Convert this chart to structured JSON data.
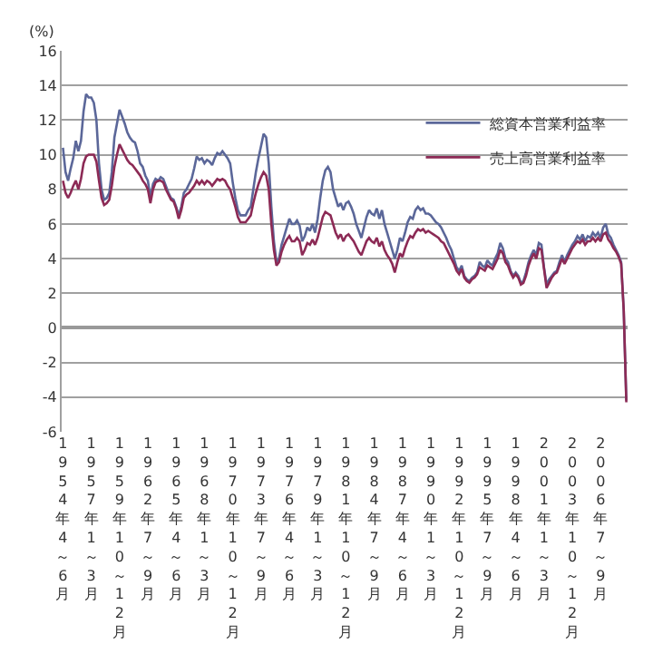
{
  "chart_data": {
    "type": "line",
    "ylabel": "(%)",
    "categories": [
      "1954年4～6月",
      null,
      null,
      null,
      null,
      null,
      null,
      null,
      null,
      null,
      null,
      "1957年1～3月",
      null,
      null,
      null,
      null,
      null,
      null,
      null,
      null,
      null,
      null,
      "1959年10～12月",
      null,
      null,
      null,
      null,
      null,
      null,
      null,
      null,
      null,
      null,
      "1962年7～9月",
      null,
      null,
      null,
      null,
      null,
      null,
      null,
      null,
      null,
      null,
      "1965年4～6月",
      null,
      null,
      null,
      null,
      null,
      null,
      null,
      null,
      null,
      null,
      "1968年1～3月",
      null,
      null,
      null,
      null,
      null,
      null,
      null,
      null,
      null,
      null,
      "1970年10～12月",
      null,
      null,
      null,
      null,
      null,
      null,
      null,
      null,
      null,
      null,
      "1973年7～9月",
      null,
      null,
      null,
      null,
      null,
      null,
      null,
      null,
      null,
      null,
      "1976年4～6月",
      null,
      null,
      null,
      null,
      null,
      null,
      null,
      null,
      null,
      null,
      "1979年1～3月",
      null,
      null,
      null,
      null,
      null,
      null,
      null,
      null,
      null,
      null,
      "1981年10～12月",
      null,
      null,
      null,
      null,
      null,
      null,
      null,
      null,
      null,
      null,
      "1984年7～9月",
      null,
      null,
      null,
      null,
      null,
      null,
      null,
      null,
      null,
      null,
      "1987年4～6月",
      null,
      null,
      null,
      null,
      null,
      null,
      null,
      null,
      null,
      null,
      "1990年1～3月",
      null,
      null,
      null,
      null,
      null,
      null,
      null,
      null,
      null,
      null,
      "1992年10～12月",
      null,
      null,
      null,
      null,
      null,
      null,
      null,
      null,
      null,
      null,
      "1995年7～9月",
      null,
      null,
      null,
      null,
      null,
      null,
      null,
      null,
      null,
      null,
      "1998年4～6月",
      null,
      null,
      null,
      null,
      null,
      null,
      null,
      null,
      null,
      null,
      "2001年1～3月",
      null,
      null,
      null,
      null,
      null,
      null,
      null,
      null,
      null,
      null,
      "2003年10～12月",
      null,
      null,
      null,
      null,
      null,
      null,
      null,
      null,
      null,
      null,
      "2006年7～9月",
      null,
      null,
      null,
      null,
      null,
      null,
      null,
      null,
      null,
      null
    ],
    "series": [
      {
        "name": "総資本営業利益率",
        "color": "#5b6799",
        "values": [
          10.4,
          9.0,
          8.5,
          9.2,
          9.8,
          10.8,
          10.2,
          10.8,
          12.5,
          13.5,
          13.3,
          13.3,
          13.0,
          12.0,
          9.5,
          8.0,
          7.4,
          7.5,
          7.8,
          9.0,
          11.0,
          11.8,
          12.6,
          12.2,
          11.8,
          11.3,
          11.0,
          10.8,
          10.7,
          10.2,
          9.5,
          9.3,
          8.8,
          8.5,
          7.5,
          8.3,
          8.6,
          8.5,
          8.7,
          8.6,
          8.2,
          7.8,
          7.5,
          7.4,
          7.0,
          6.5,
          7.0,
          7.8,
          8.0,
          8.3,
          8.6,
          9.2,
          9.9,
          9.7,
          9.8,
          9.5,
          9.7,
          9.6,
          9.4,
          9.8,
          10.1,
          10.0,
          10.2,
          10.0,
          9.8,
          9.5,
          8.4,
          7.5,
          6.8,
          6.5,
          6.5,
          6.5,
          6.8,
          7.0,
          8.0,
          9.0,
          9.8,
          10.5,
          11.2,
          11.0,
          9.5,
          7.0,
          5.0,
          3.8,
          4.0,
          4.8,
          5.3,
          5.8,
          6.3,
          6.0,
          6.0,
          6.2,
          5.9,
          5.0,
          5.3,
          5.8,
          5.6,
          6.0,
          5.5,
          6.3,
          7.5,
          8.5,
          9.1,
          9.3,
          9.0,
          8.0,
          7.5,
          7.0,
          7.2,
          6.8,
          7.2,
          7.3,
          7.0,
          6.6,
          6.0,
          5.6,
          5.2,
          5.8,
          6.4,
          6.8,
          6.6,
          6.5,
          6.9,
          6.3,
          6.8,
          6.0,
          5.5,
          5.0,
          4.5,
          4.0,
          4.5,
          5.2,
          5.0,
          5.5,
          6.1,
          6.4,
          6.3,
          6.8,
          7.0,
          6.8,
          6.9,
          6.6,
          6.6,
          6.5,
          6.3,
          6.1,
          6.0,
          5.8,
          5.5,
          5.2,
          4.8,
          4.5,
          4.0,
          3.5,
          3.3,
          3.6,
          3.0,
          2.8,
          2.7,
          2.9,
          3.0,
          3.2,
          3.8,
          3.6,
          3.5,
          3.9,
          3.7,
          3.6,
          4.0,
          4.3,
          4.9,
          4.6,
          4.0,
          3.8,
          3.3,
          3.0,
          3.2,
          3.0,
          2.6,
          2.7,
          3.2,
          3.8,
          4.2,
          4.5,
          4.2,
          4.9,
          4.8,
          3.5,
          2.5,
          2.8,
          3.0,
          3.2,
          3.3,
          3.8,
          4.2,
          3.8,
          4.2,
          4.5,
          4.8,
          5.0,
          5.3,
          5.1,
          5.4,
          5.0,
          5.3,
          5.2,
          5.5,
          5.3,
          5.5,
          5.2,
          5.8,
          6.0,
          5.4,
          5.2,
          4.8,
          4.5,
          4.2,
          3.8,
          1.0,
          -4.2
        ]
      },
      {
        "name": "売上高営業利益率",
        "color": "#8c2a55",
        "values": [
          8.5,
          7.8,
          7.5,
          7.8,
          8.2,
          8.5,
          8.0,
          8.6,
          9.5,
          9.9,
          10.0,
          10.0,
          10.0,
          9.6,
          8.5,
          7.5,
          7.1,
          7.2,
          7.4,
          8.2,
          9.3,
          10.0,
          10.6,
          10.3,
          10.0,
          9.7,
          9.5,
          9.4,
          9.2,
          9.0,
          8.8,
          8.5,
          8.3,
          8.0,
          7.2,
          8.0,
          8.4,
          8.5,
          8.5,
          8.4,
          8.0,
          7.7,
          7.4,
          7.3,
          6.9,
          6.3,
          6.8,
          7.5,
          7.7,
          7.8,
          8.0,
          8.2,
          8.5,
          8.3,
          8.5,
          8.3,
          8.5,
          8.4,
          8.2,
          8.4,
          8.6,
          8.5,
          8.6,
          8.5,
          8.2,
          8.0,
          7.5,
          7.0,
          6.4,
          6.1,
          6.1,
          6.1,
          6.3,
          6.5,
          7.2,
          7.8,
          8.3,
          8.7,
          9.0,
          8.8,
          8.0,
          6.0,
          4.5,
          3.6,
          3.8,
          4.4,
          4.8,
          5.1,
          5.3,
          5.0,
          5.0,
          5.2,
          5.0,
          4.2,
          4.5,
          4.9,
          4.8,
          5.1,
          4.8,
          5.2,
          5.8,
          6.4,
          6.7,
          6.6,
          6.5,
          6.0,
          5.5,
          5.2,
          5.4,
          5.0,
          5.3,
          5.4,
          5.2,
          5.0,
          4.7,
          4.4,
          4.2,
          4.6,
          5.0,
          5.2,
          5.0,
          4.9,
          5.2,
          4.7,
          5.0,
          4.5,
          4.2,
          4.0,
          3.7,
          3.2,
          3.8,
          4.3,
          4.1,
          4.6,
          5.0,
          5.3,
          5.2,
          5.5,
          5.7,
          5.6,
          5.7,
          5.5,
          5.6,
          5.5,
          5.4,
          5.3,
          5.2,
          5.0,
          4.9,
          4.6,
          4.3,
          4.0,
          3.7,
          3.3,
          3.1,
          3.4,
          2.9,
          2.7,
          2.6,
          2.8,
          2.9,
          3.1,
          3.5,
          3.4,
          3.3,
          3.6,
          3.5,
          3.4,
          3.7,
          4.0,
          4.5,
          4.3,
          3.8,
          3.6,
          3.2,
          2.9,
          3.1,
          2.9,
          2.5,
          2.6,
          3.0,
          3.6,
          4.0,
          4.3,
          4.0,
          4.6,
          4.5,
          3.4,
          2.3,
          2.6,
          2.9,
          3.1,
          3.2,
          3.6,
          4.0,
          3.7,
          4.0,
          4.3,
          4.6,
          4.8,
          5.0,
          4.9,
          5.1,
          4.8,
          5.0,
          5.0,
          5.2,
          5.0,
          5.2,
          5.0,
          5.4,
          5.5,
          5.1,
          4.9,
          4.6,
          4.4,
          4.1,
          3.7,
          1.0,
          -4.3
        ]
      }
    ],
    "ylim": [
      -6,
      16
    ],
    "yticks": [
      -6,
      -4,
      -2,
      0,
      2,
      4,
      6,
      8,
      10,
      12,
      14,
      16
    ],
    "grid": "y",
    "legend": "top right",
    "marker": "none",
    "line_style": "solid"
  }
}
